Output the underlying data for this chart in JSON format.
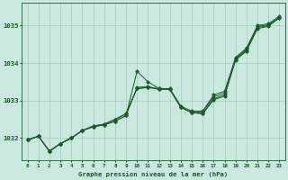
{
  "background_color": "#c8e8e0",
  "grid_color": "#a8c8c0",
  "line_color": "#1a5c28",
  "title": "Graphe pression niveau de la mer (hPa)",
  "ylabel_ticks": [
    1032,
    1033,
    1034,
    1035
  ],
  "xlim": [
    -0.5,
    23.5
  ],
  "ylim": [
    1031.4,
    1035.6
  ],
  "series": [
    [
      1031.95,
      1032.05,
      1031.65,
      1031.85,
      1032.0,
      1032.2,
      1032.3,
      1032.35,
      1032.45,
      1032.6,
      1033.78,
      1033.5,
      1033.32,
      1033.3,
      1032.82,
      1032.68,
      1032.65,
      1033.02,
      1033.12,
      1034.08,
      1034.32,
      1034.92,
      1034.98,
      1035.22
    ],
    [
      1031.95,
      1032.05,
      1031.65,
      1031.85,
      1032.0,
      1032.2,
      1032.3,
      1032.35,
      1032.45,
      1032.6,
      1033.35,
      1033.38,
      1033.3,
      1033.3,
      1032.82,
      1032.68,
      1032.65,
      1033.05,
      1033.15,
      1034.1,
      1034.35,
      1034.95,
      1035.0,
      1035.2
    ],
    [
      1031.95,
      1032.05,
      1031.65,
      1031.85,
      1032.0,
      1032.2,
      1032.32,
      1032.37,
      1032.5,
      1032.65,
      1033.32,
      1033.35,
      1033.3,
      1033.3,
      1032.82,
      1032.68,
      1032.7,
      1033.1,
      1033.2,
      1034.12,
      1034.38,
      1034.98,
      1035.02,
      1035.22
    ],
    [
      1031.95,
      1032.05,
      1031.65,
      1031.85,
      1032.0,
      1032.2,
      1032.32,
      1032.37,
      1032.5,
      1032.65,
      1033.32,
      1033.35,
      1033.32,
      1033.32,
      1032.85,
      1032.72,
      1032.72,
      1033.15,
      1033.25,
      1034.15,
      1034.4,
      1035.0,
      1035.05,
      1035.25
    ]
  ],
  "xtick_labels": [
    "0",
    "1",
    "2",
    "3",
    "4",
    "5",
    "6",
    "7",
    "8",
    "9",
    "10",
    "11",
    "12",
    "13",
    "14",
    "15",
    "16",
    "17",
    "18",
    "19",
    "20",
    "21",
    "22",
    "23"
  ],
  "figsize": [
    3.2,
    2.0
  ],
  "dpi": 100
}
